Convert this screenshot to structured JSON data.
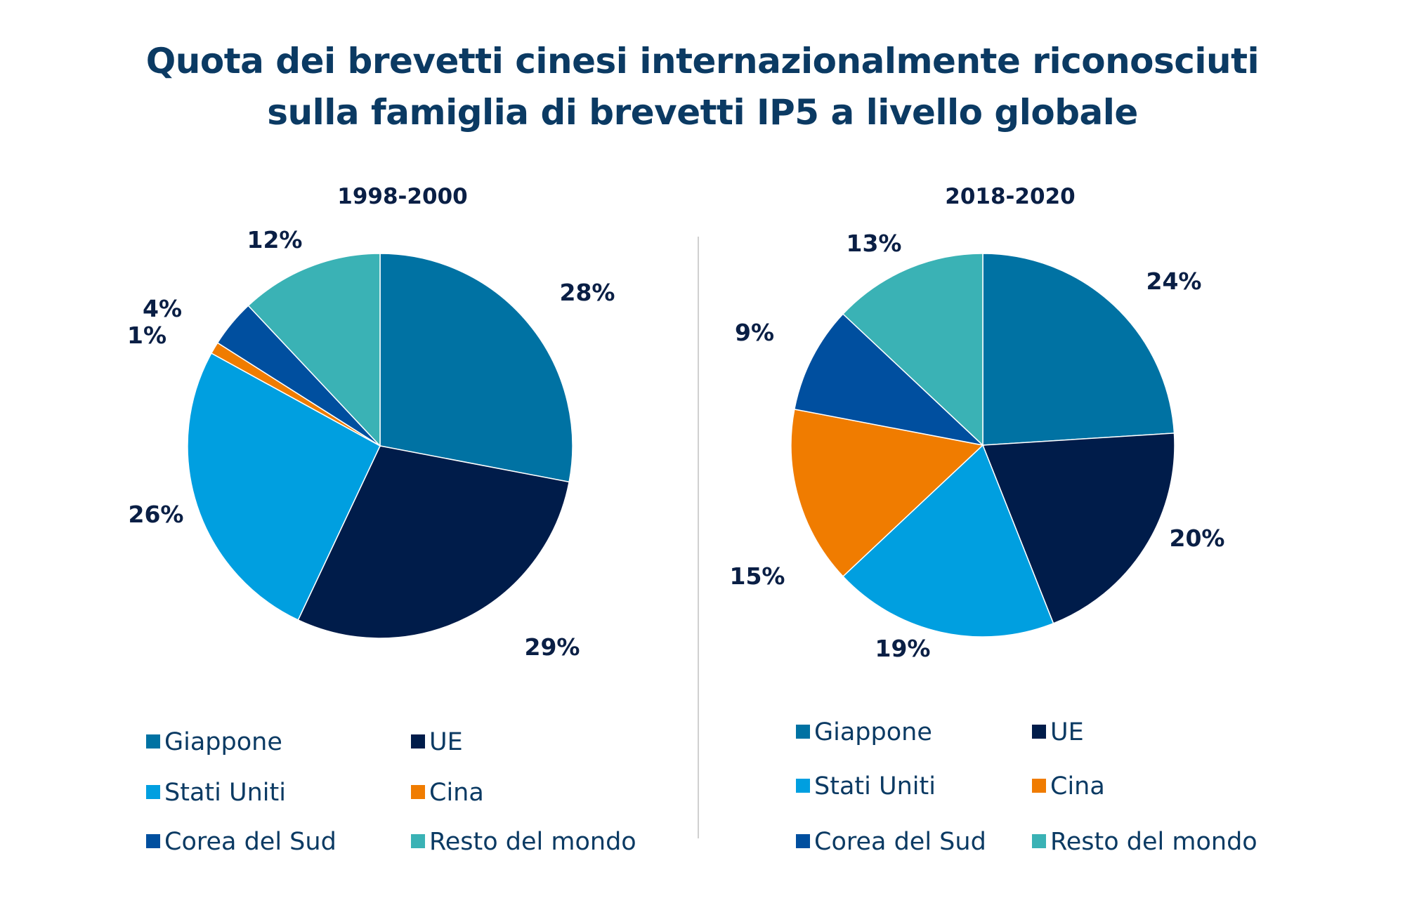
{
  "title": {
    "line1": "Quota dei brevetti cinesi internazionalmente riconosciuti",
    "line2": "sulla famiglia di brevetti IP5 a livello globale"
  },
  "colors": {
    "Giappone": "#0072a3",
    "UE": "#001c4a",
    "Stati Uniti": "#009fe0",
    "Cina": "#f07c00",
    "Corea del Sud": "#004f9f",
    "Resto del mondo": "#3ab2b5"
  },
  "chart_data": [
    {
      "type": "pie",
      "title": "1998-2000",
      "categories": [
        "Giappone",
        "UE",
        "Stati Uniti",
        "Cina",
        "Corea del Sud",
        "Resto del mondo"
      ],
      "values": [
        28,
        29,
        26,
        1,
        4,
        12
      ],
      "labels": [
        "28%",
        "29%",
        "26%",
        "1%",
        "4%",
        "12%"
      ],
      "legend": [
        "Giappone",
        "UE",
        "Stati Uniti",
        "Cina",
        "Corea del Sud",
        "Resto del mondo"
      ],
      "legend_placement": "bottom"
    },
    {
      "type": "pie",
      "title": "2018-2020",
      "categories": [
        "Giappone",
        "UE",
        "Stati Uniti",
        "Cina",
        "Corea del Sud",
        "Resto del mondo"
      ],
      "values": [
        24,
        20,
        19,
        15,
        9,
        13
      ],
      "labels": [
        "24%",
        "20%",
        "19%",
        "15%",
        "9%",
        "13%"
      ],
      "legend": [
        "Giappone",
        "UE",
        "Stati Uniti",
        "Cina",
        "Corea del Sud",
        "Resto del mondo"
      ],
      "legend_placement": "bottom"
    }
  ]
}
